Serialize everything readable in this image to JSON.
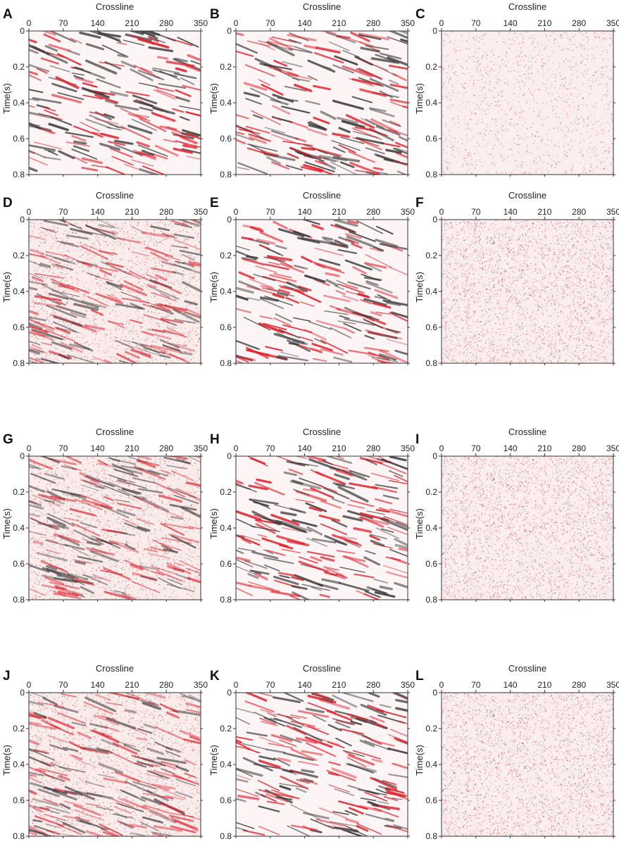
{
  "figure": {
    "x_axis_label": "Crossline",
    "y_axis_label": "Time(s)",
    "x_ticks": [
      "0",
      "70",
      "140",
      "210",
      "280",
      "350"
    ],
    "y_ticks": [
      "0",
      "0.2",
      "0.4",
      "0.6",
      "0.8"
    ],
    "colors": {
      "positive": "#e0202a",
      "negative": "#3a3a3a",
      "background": "#ffffff",
      "axis": "#333333"
    },
    "panels": [
      {
        "id": "A",
        "label": "A",
        "content": "seismic section"
      },
      {
        "id": "B",
        "label": "B",
        "content": "seismic section"
      },
      {
        "id": "C",
        "label": "C",
        "content": "residual noise"
      },
      {
        "id": "D",
        "label": "D",
        "content": "noisy seismic section"
      },
      {
        "id": "E",
        "label": "E",
        "content": "seismic section"
      },
      {
        "id": "F",
        "label": "F",
        "content": "residual noise"
      },
      {
        "id": "G",
        "label": "G",
        "content": "noisy seismic section"
      },
      {
        "id": "H",
        "label": "H",
        "content": "seismic section"
      },
      {
        "id": "I",
        "label": "I",
        "content": "residual noise"
      },
      {
        "id": "J",
        "label": "J",
        "content": "noisy seismic section"
      },
      {
        "id": "K",
        "label": "K",
        "content": "seismic section"
      },
      {
        "id": "L",
        "label": "L",
        "content": "residual noise"
      }
    ]
  }
}
